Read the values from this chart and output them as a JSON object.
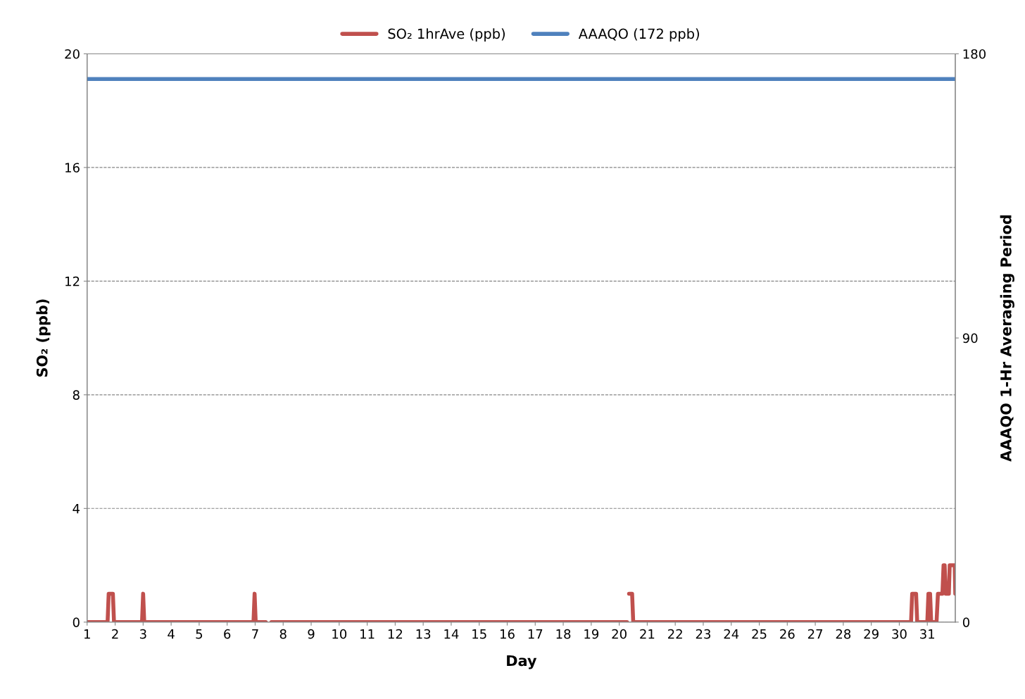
{
  "chart_data": {
    "type": "line",
    "xlabel": "Day",
    "ylabel": "SO₂ (ppb)",
    "y2label": "AAAQO 1-Hr Averaging Period",
    "xlim": [
      1,
      32
    ],
    "xticks": [
      1,
      2,
      3,
      4,
      5,
      6,
      7,
      8,
      9,
      10,
      11,
      12,
      13,
      14,
      15,
      16,
      17,
      18,
      19,
      20,
      21,
      22,
      23,
      24,
      25,
      26,
      27,
      28,
      29,
      30,
      31
    ],
    "ylim": [
      0,
      20
    ],
    "yticks": [
      0,
      4,
      8,
      12,
      16,
      20
    ],
    "y2lim": [
      0,
      180
    ],
    "y2ticks": [
      0,
      90,
      180
    ],
    "grid": "y",
    "legend": "top",
    "marker": "none",
    "line_style": "solid",
    "series": [
      {
        "name": "SO₂ 1hrAve (ppb)",
        "color": "#c0504d",
        "x": [
          1,
          1.73,
          1.77,
          1.92,
          1.96,
          2.96,
          3.0,
          3.04,
          6.94,
          6.98,
          7.02,
          7.38,
          7.46,
          7.58,
          20.28,
          20.33,
          20.35,
          20.46,
          20.5,
          30.42,
          30.46,
          30.6,
          30.64,
          31.0,
          31.04,
          31.1,
          31.14,
          31.33,
          31.38,
          31.54,
          31.58,
          31.62,
          31.66,
          31.77,
          31.8,
          31.98,
          32
        ],
        "values": [
          0,
          0,
          1,
          1,
          0,
          0,
          1,
          0,
          0,
          1,
          0,
          0,
          null,
          0,
          0,
          null,
          1,
          1,
          0,
          0,
          1,
          1,
          0,
          0,
          1,
          1,
          0,
          0,
          1,
          1,
          2,
          2,
          1,
          1,
          2,
          2,
          1
        ]
      },
      {
        "name": "AAAQO (172 ppb)",
        "color": "#4f81bd",
        "axis": "y2",
        "x": [
          1,
          32
        ],
        "values": [
          172,
          172
        ]
      }
    ]
  }
}
